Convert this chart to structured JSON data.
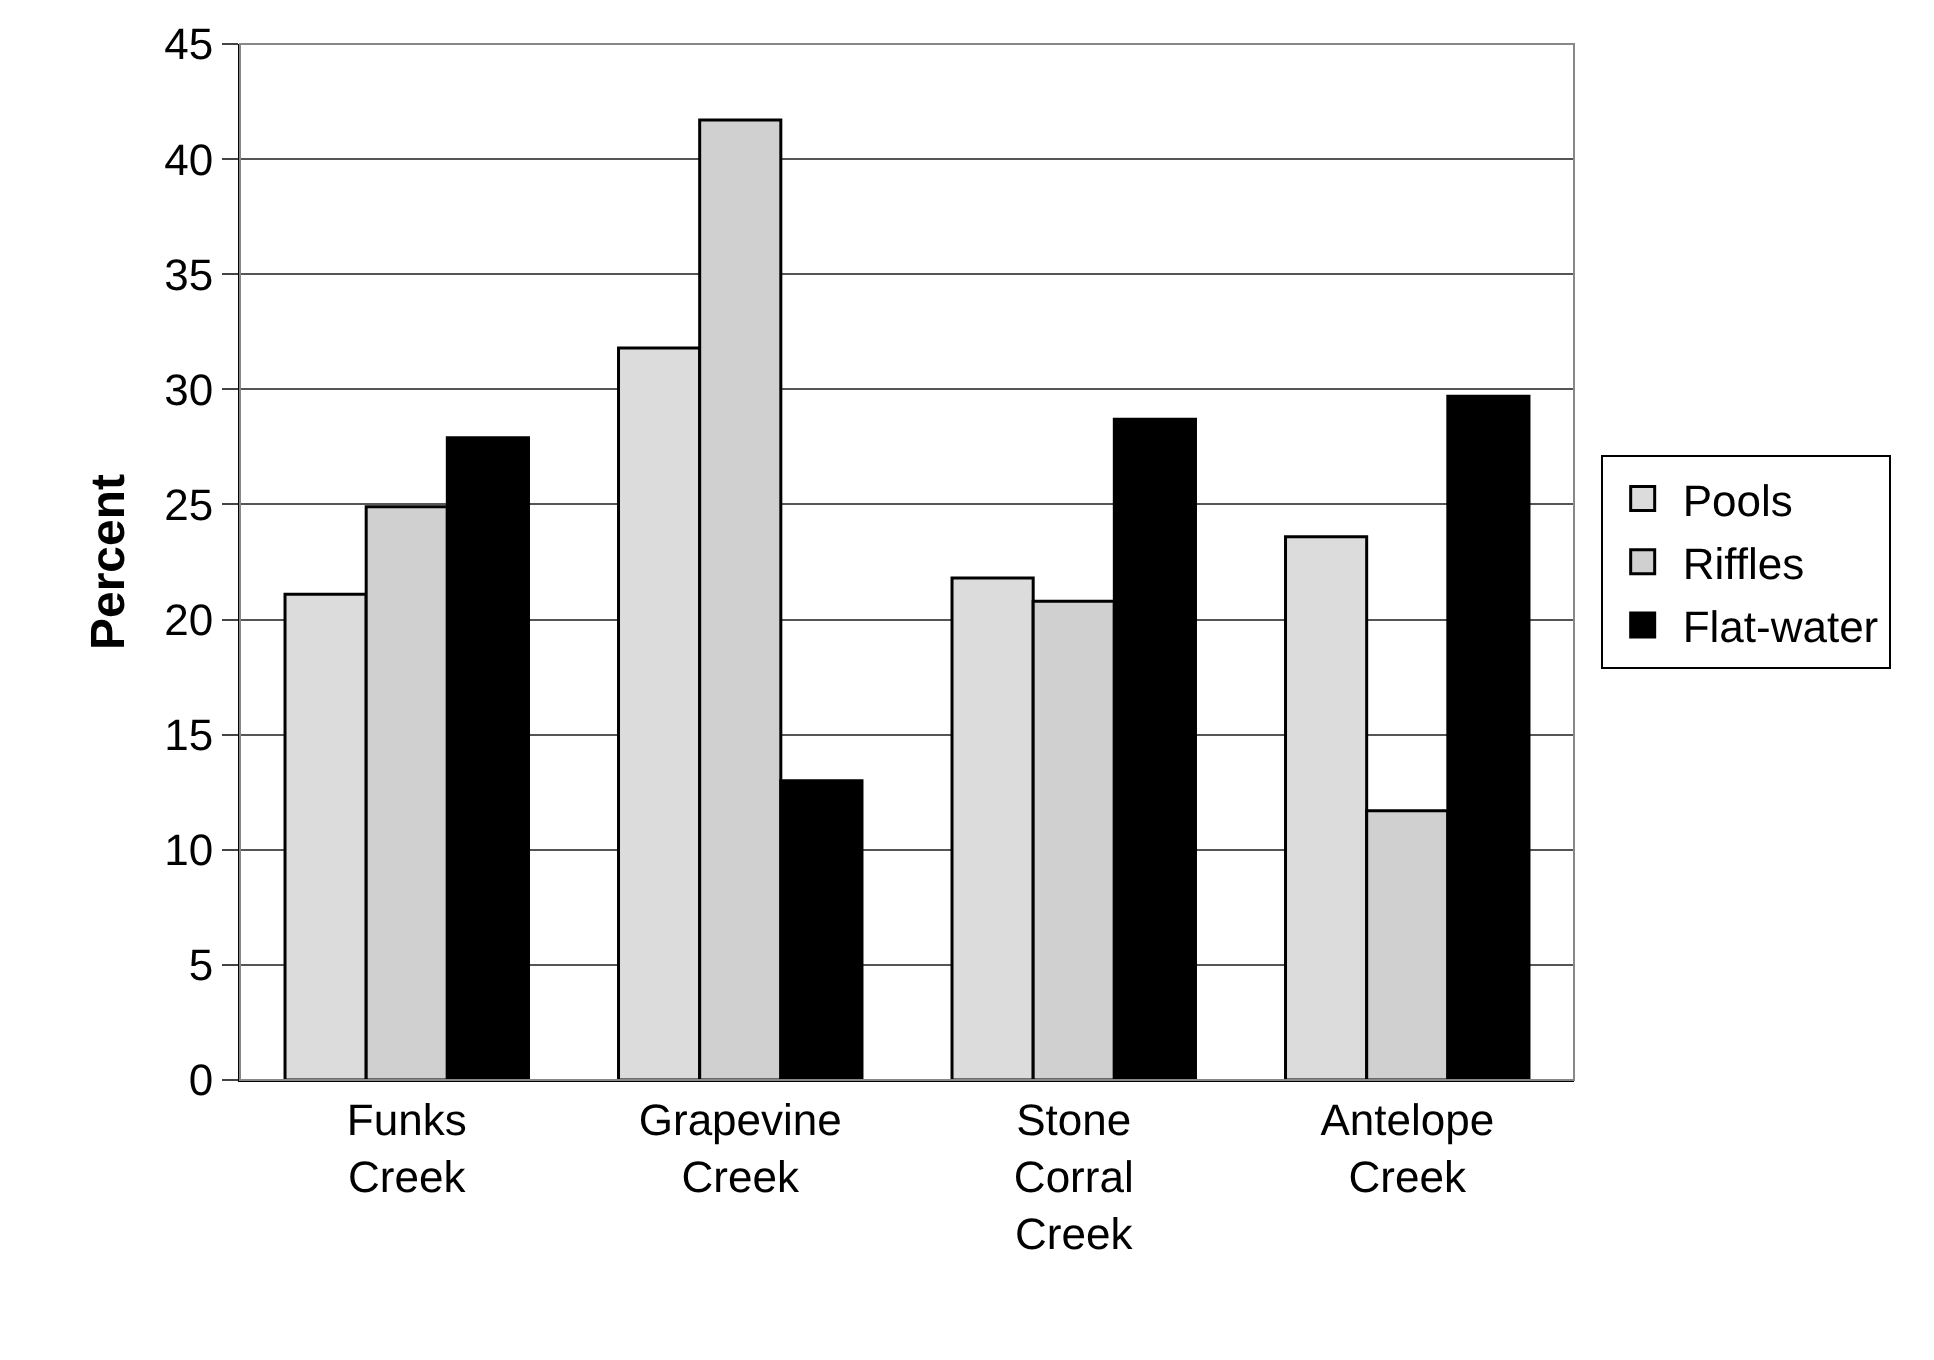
{
  "chart_data": {
    "type": "bar",
    "ylabel": "Percent",
    "categories": [
      "Funks\nCreek",
      "Grapevine\nCreek",
      "Stone\nCorral\nCreek",
      "Antelope\nCreek"
    ],
    "series": [
      {
        "name": "Pools",
        "color": "#dcdcdc",
        "values": [
          21.1,
          31.8,
          21.8,
          23.6
        ]
      },
      {
        "name": "Riffles",
        "color": "#d0d0d0",
        "values": [
          24.9,
          41.7,
          20.8,
          11.7
        ]
      },
      {
        "name": "Flat-water",
        "color": "#000000",
        "values": [
          27.9,
          13,
          28.7,
          29.7
        ]
      }
    ],
    "ylim": [
      0,
      45
    ],
    "yticks": [
      0,
      5,
      10,
      15,
      20,
      25,
      30,
      35,
      40,
      45
    ],
    "grid": "y",
    "legend": "right"
  }
}
